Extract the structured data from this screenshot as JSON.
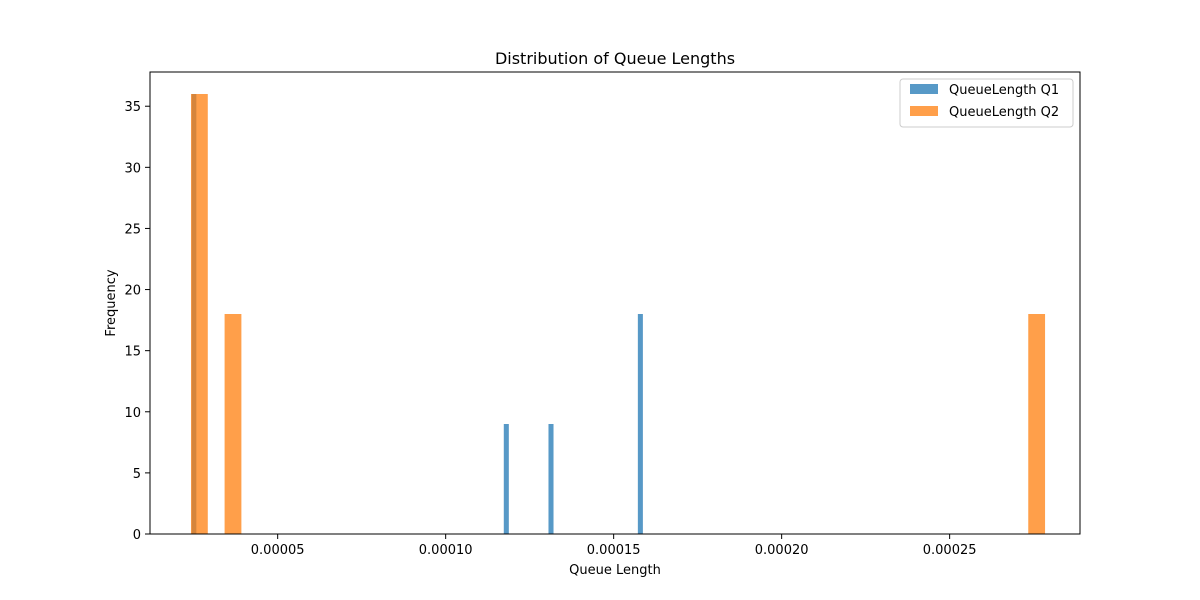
{
  "chart_data": {
    "type": "bar",
    "title": "Distribution of Queue Lengths",
    "xlabel": "Queue Length",
    "ylabel": "Frequency",
    "xlim": [
      1.2e-06,
      8.88e-05
    ],
    "ylim": [
      0,
      37.8
    ],
    "xticks": [
      {
        "value": 5e-05,
        "label": "0.00005"
      },
      {
        "value": 0.0001,
        "label": "0.00010"
      },
      {
        "value": 0.00015,
        "label": "0.00015"
      },
      {
        "value": 0.0002,
        "label": "0.00020"
      },
      {
        "value": 0.00025,
        "label": "0.00025"
      }
    ],
    "yticks": [
      {
        "value": 0,
        "label": "0"
      },
      {
        "value": 5,
        "label": "5"
      },
      {
        "value": 10,
        "label": "10"
      },
      {
        "value": 15,
        "label": "15"
      },
      {
        "value": 20,
        "label": "20"
      },
      {
        "value": 25,
        "label": "25"
      },
      {
        "value": 30,
        "label": "30"
      },
      {
        "value": 35,
        "label": "35"
      }
    ],
    "grid": false,
    "legend_position": "top-right",
    "series": [
      {
        "name": "QueueLength Q1",
        "color": "#1f77b4",
        "opacity": 0.75,
        "bars": [
          {
            "x0": 2.44e-05,
            "x1": 2.58e-05,
            "value": 36
          },
          {
            "x0": 0.0001173,
            "x1": 0.0001188,
            "value": 9
          },
          {
            "x0": 0.0001306,
            "x1": 0.0001321,
            "value": 9
          },
          {
            "x0": 0.0001572,
            "x1": 0.0001587,
            "value": 18
          }
        ]
      },
      {
        "name": "QueueLength Q2",
        "color": "#ff7f0e",
        "opacity": 0.75,
        "bars": [
          {
            "x0": 2.42e-05,
            "x1": 2.92e-05,
            "value": 36
          },
          {
            "x0": 3.42e-05,
            "x1": 3.92e-05,
            "value": 18
          },
          {
            "x0": 0.0002734,
            "x1": 0.0002784,
            "value": 18
          }
        ]
      }
    ]
  }
}
